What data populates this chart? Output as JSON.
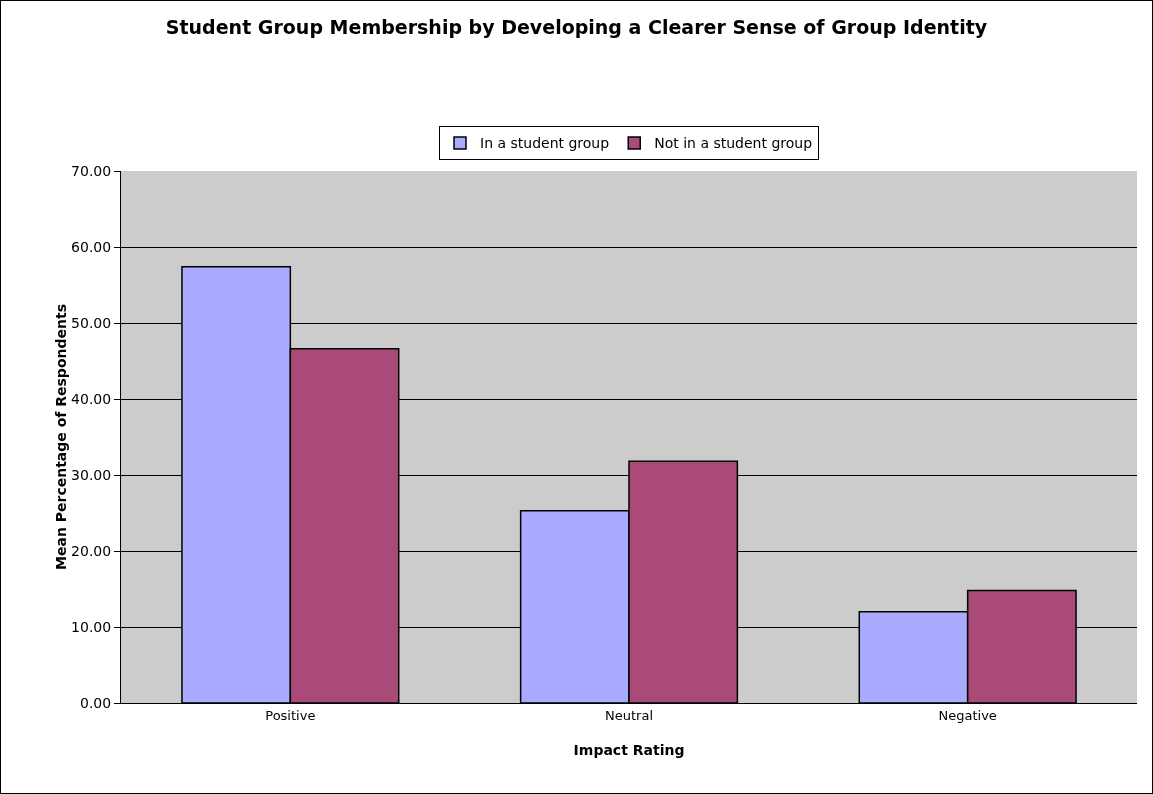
{
  "chart_data": {
    "type": "bar",
    "title": "Student Group Membership by Developing a Clearer Sense of Group Identity",
    "xlabel": "Impact Rating",
    "ylabel": "Mean Percentage of Respondents",
    "categories": [
      "Positive",
      "Neutral",
      "Negative"
    ],
    "series": [
      {
        "name": "In a student group",
        "color": "#aaaaff",
        "values": [
          57.4,
          25.3,
          12.0
        ]
      },
      {
        "name": "Not in a student group",
        "color": "#a94a78",
        "values": [
          46.6,
          31.8,
          14.8
        ]
      }
    ],
    "ylim": [
      0,
      70
    ],
    "yticks": [
      {
        "value": 0,
        "label": "0.00"
      },
      {
        "value": 10,
        "label": "10.00"
      },
      {
        "value": 20,
        "label": "20.00"
      },
      {
        "value": 30,
        "label": "30.00"
      },
      {
        "value": 40,
        "label": "40.00"
      },
      {
        "value": 50,
        "label": "50.00"
      },
      {
        "value": 60,
        "label": "60.00"
      },
      {
        "value": 70,
        "label": "70.00"
      }
    ],
    "grid": "y",
    "legend": "top"
  }
}
